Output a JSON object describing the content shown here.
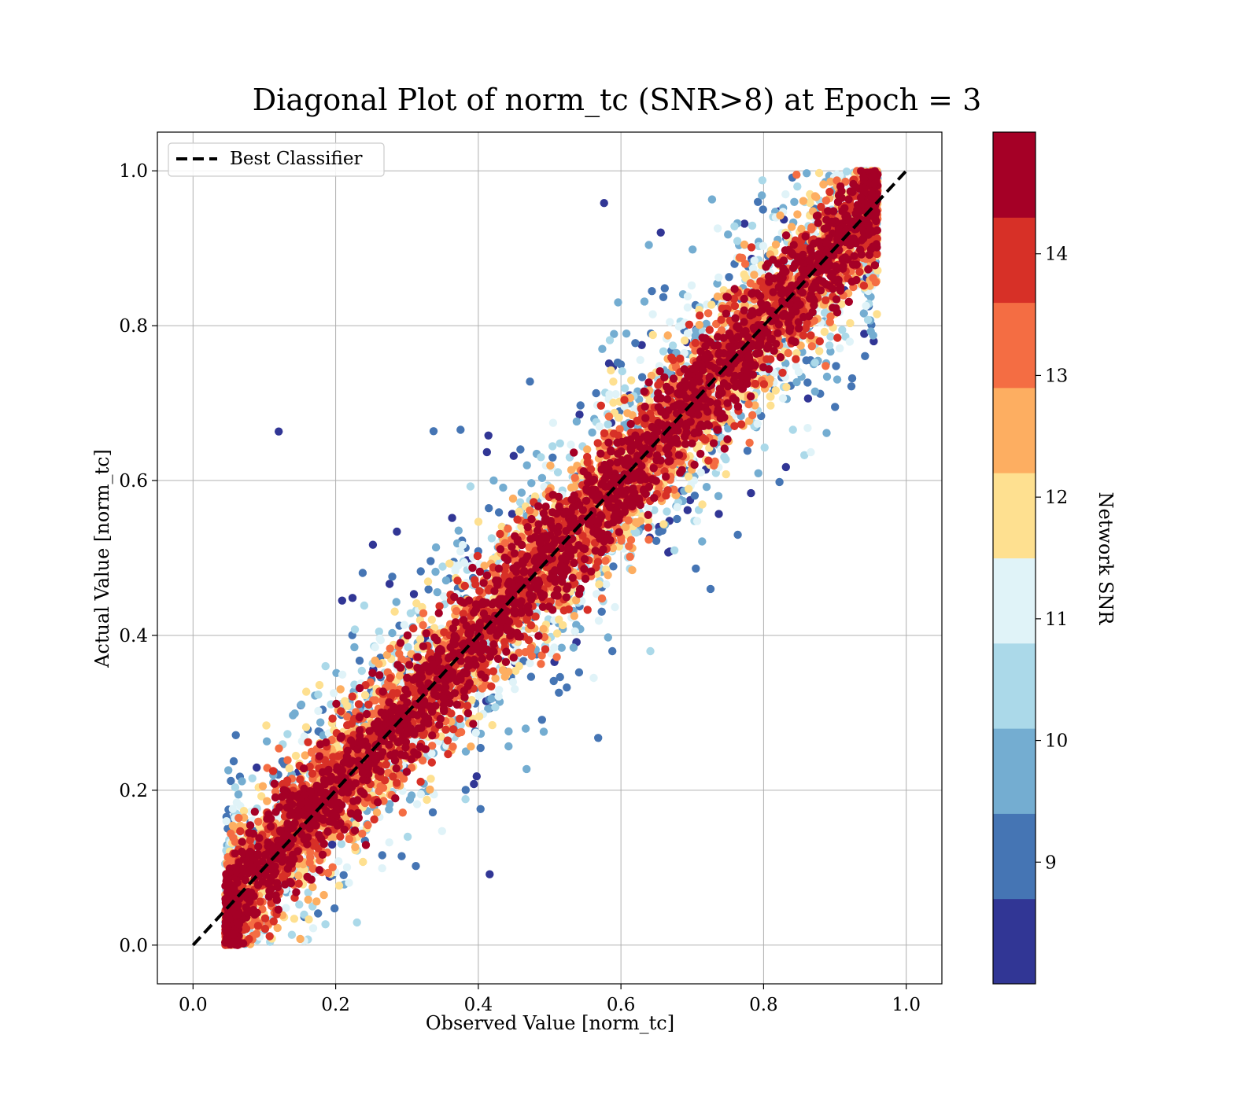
{
  "chart_data": {
    "type": "scatter",
    "title": "Diagonal Plot of norm_tc (SNR>8) at Epoch = 3",
    "xlabel": "Observed Value [norm_tc]",
    "ylabel": "Actual Value [norm_tc]",
    "xlim": [
      -0.05,
      1.05
    ],
    "ylim": [
      -0.05,
      1.05
    ],
    "xticks": [
      "0.0",
      "0.2",
      "0.4",
      "0.6",
      "0.8",
      "1.0"
    ],
    "yticks": [
      "0.0",
      "0.2",
      "0.4",
      "0.6",
      "0.8",
      "1.0"
    ],
    "grid": true,
    "legend": {
      "placement": "top-left",
      "entries": [
        {
          "label": "Best Classifier",
          "style": "dashed",
          "color": "#000000"
        }
      ]
    },
    "reference_line": {
      "label": "Best Classifier",
      "x": [
        0.0,
        1.0
      ],
      "y": [
        0.0,
        1.0
      ]
    },
    "colorbar": {
      "label": "Network SNR",
      "range": [
        8,
        15
      ],
      "ticks": [
        "9",
        "10",
        "11",
        "12",
        "13",
        "14"
      ],
      "colors": [
        "#313695",
        "#4575b4",
        "#74add1",
        "#abd9e9",
        "#e0f3f8",
        "#fee090",
        "#fdae61",
        "#f46d43",
        "#d73027",
        "#a50026"
      ]
    },
    "points_note_bins": [
      {
        "snr_bin": "8-9",
        "color": "#313695"
      },
      {
        "snr_bin": "14+",
        "color": "#a50026"
      }
    ]
  }
}
